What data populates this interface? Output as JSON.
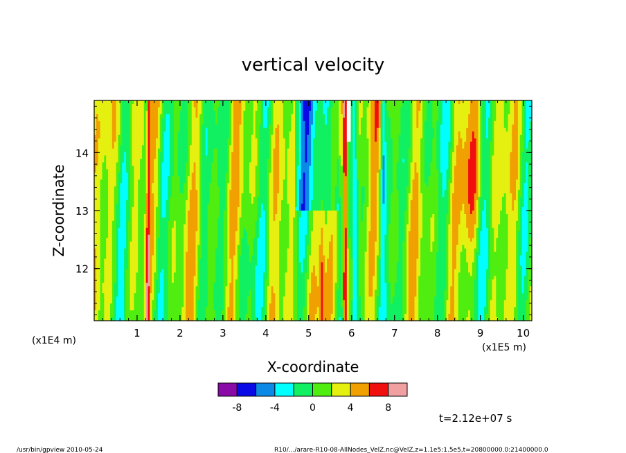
{
  "chart_data": {
    "type": "heatmap",
    "title": "vertical velocity",
    "xlabel": "X-coordinate",
    "ylabel": "Z-coordinate",
    "x_unit": "(x1E5 m)",
    "y_unit": "(x1E4 m)",
    "xlim": [
      0,
      10.2
    ],
    "ylim": [
      11.1,
      14.9
    ],
    "x_ticks": [
      "1",
      "2",
      "3",
      "4",
      "5",
      "6",
      "7",
      "8",
      "9",
      "10"
    ],
    "y_ticks": [
      "12",
      "13",
      "14"
    ],
    "colorbar": {
      "levels": [
        -10,
        -8,
        -6,
        -4,
        -2,
        0,
        2,
        4,
        6,
        8,
        10
      ],
      "colors": [
        "#8a0aa8",
        "#0a0ae6",
        "#0a8ae6",
        "#00ffff",
        "#10f060",
        "#50ee10",
        "#e6f010",
        "#f0a000",
        "#f01010",
        "#f0a0a0"
      ],
      "tick_labels": [
        "-8",
        "-4",
        "0",
        "4",
        "8"
      ],
      "tick_values": [
        -8,
        -4,
        0,
        4,
        8
      ]
    },
    "time_label": "t=2.12e+07 s",
    "grid": false
  },
  "footer": {
    "left": "/usr/bin/gpview  2010-05-24",
    "right": "R10/.../arare-R10-08-AllNodes_VelZ.nc@VelZ,z=1.1e5:1.5e5,t=20800000.0:21400000.0"
  }
}
